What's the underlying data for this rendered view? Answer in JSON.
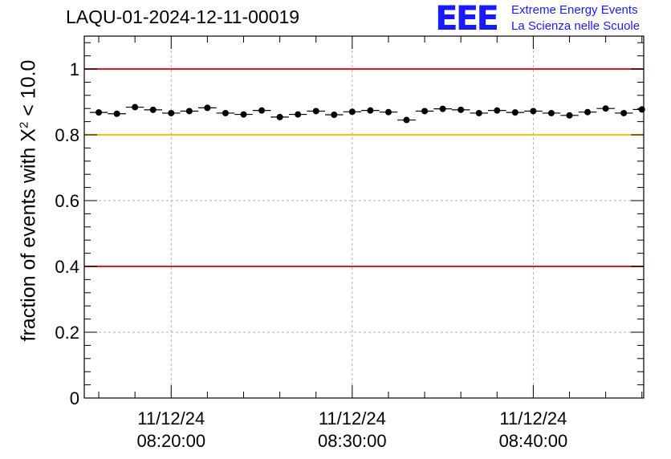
{
  "title": "LAQU-01-2024-12-11-00019",
  "logo": {
    "mark": "EEE",
    "line1": "Extreme Energy Events",
    "line2": "La Scienza nelle Scuole"
  },
  "chart_data": {
    "type": "scatter",
    "title": "LAQU-01-2024-12-11-00019",
    "ylabel_prefix": "fraction of events with ",
    "ylabel_symbol": "X",
    "ylabel_sup": "2",
    "ylabel_suffix": " < 10.0",
    "xlabel": "",
    "ylim": [
      0,
      1.1
    ],
    "xlim_minutes": [
      15.2,
      46.1
    ],
    "yticks": [
      0,
      0.2,
      0.4,
      0.6,
      0.8,
      1
    ],
    "ytick_labels": [
      "0",
      "0.2",
      "0.4",
      "0.6",
      "0.8",
      "1"
    ],
    "xticks": [
      {
        "minute": 20,
        "date": "11/12/24",
        "time": "08:20:00"
      },
      {
        "minute": 30,
        "date": "11/12/24",
        "time": "08:30:00"
      },
      {
        "minute": 40,
        "date": "11/12/24",
        "time": "08:40:00"
      }
    ],
    "grid": true,
    "reference_lines": [
      {
        "y": 1.0,
        "color": "#e8181c"
      },
      {
        "y": 0.8,
        "color": "#ffc20e"
      },
      {
        "y": 0.4,
        "color": "#e8181c"
      }
    ],
    "series": [
      {
        "name": "fraction",
        "bin_width_minutes": 1,
        "x": [
          16,
          17,
          18,
          19,
          20,
          21,
          22,
          23,
          24,
          25,
          26,
          27,
          28,
          29,
          30,
          31,
          32,
          33,
          34,
          35,
          36,
          37,
          38,
          39,
          40,
          41,
          42,
          43,
          44,
          45,
          46
        ],
        "values": [
          0.868,
          0.864,
          0.884,
          0.876,
          0.866,
          0.872,
          0.882,
          0.866,
          0.862,
          0.874,
          0.854,
          0.862,
          0.872,
          0.861,
          0.87,
          0.874,
          0.869,
          0.845,
          0.872,
          0.879,
          0.876,
          0.866,
          0.874,
          0.868,
          0.872,
          0.866,
          0.859,
          0.869,
          0.88,
          0.866,
          0.877
        ]
      }
    ]
  }
}
